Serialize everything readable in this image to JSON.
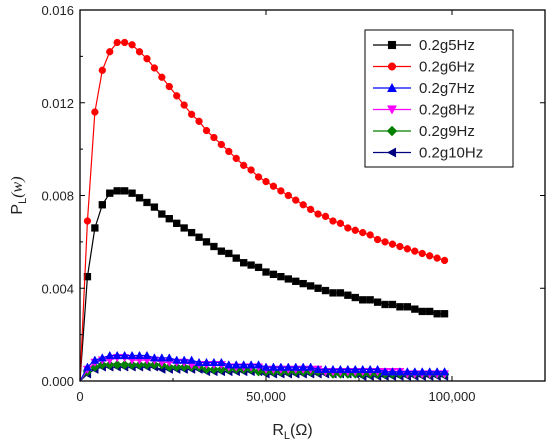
{
  "chart_data": {
    "type": "scatter",
    "title": "",
    "xlabel_main": "R",
    "xlabel_sub": "L",
    "xlabel_unit": "(Ω)",
    "ylabel_main": "P",
    "ylabel_sub": "L",
    "ylabel_unit": "(w)",
    "xlim": [
      0,
      125000
    ],
    "ylim": [
      0,
      0.016
    ],
    "xticks": [
      0,
      50000,
      100000
    ],
    "xtick_labels": [
      "0",
      "50,000",
      "100,000"
    ],
    "yticks": [
      0,
      0.004,
      0.008,
      0.012,
      0.016
    ],
    "ytick_labels": [
      "0.000",
      "0.004",
      "0.008",
      "0.012",
      "0.016"
    ],
    "legend_position": "top-right",
    "x": [
      0,
      2000,
      4000,
      6000,
      8000,
      10000,
      12000,
      14000,
      16000,
      18000,
      20000,
      22000,
      24000,
      26000,
      28000,
      30000,
      32000,
      34000,
      36000,
      38000,
      40000,
      42000,
      44000,
      46000,
      48000,
      50000,
      52000,
      54000,
      56000,
      58000,
      60000,
      62000,
      64000,
      66000,
      68000,
      70000,
      72000,
      74000,
      76000,
      78000,
      80000,
      82000,
      84000,
      86000,
      88000,
      90000,
      92000,
      94000,
      96000,
      98000
    ],
    "series": [
      {
        "name": "0.2g5Hz",
        "color": "#000000",
        "marker": "square",
        "values": [
          0.0,
          0.0045,
          0.0066,
          0.0076,
          0.0081,
          0.0082,
          0.0082,
          0.0081,
          0.0079,
          0.0077,
          0.0075,
          0.0072,
          0.007,
          0.0068,
          0.0066,
          0.0064,
          0.0062,
          0.006,
          0.0058,
          0.0056,
          0.0055,
          0.0053,
          0.0051,
          0.005,
          0.0049,
          0.0047,
          0.0046,
          0.0045,
          0.0044,
          0.0043,
          0.0042,
          0.0041,
          0.004,
          0.0039,
          0.0038,
          0.0038,
          0.0037,
          0.0036,
          0.0035,
          0.0035,
          0.0034,
          0.0033,
          0.0033,
          0.0032,
          0.0032,
          0.0031,
          0.003,
          0.003,
          0.0029,
          0.0029
        ]
      },
      {
        "name": "0.2g6Hz",
        "color": "#ff0000",
        "marker": "circle",
        "values": [
          0.0,
          0.0069,
          0.0116,
          0.0134,
          0.0142,
          0.0146,
          0.0146,
          0.0145,
          0.0142,
          0.0139,
          0.0135,
          0.0131,
          0.0127,
          0.0123,
          0.0119,
          0.0115,
          0.0112,
          0.0108,
          0.0105,
          0.0102,
          0.0099,
          0.0096,
          0.0093,
          0.0091,
          0.0088,
          0.0086,
          0.0084,
          0.0082,
          0.008,
          0.0078,
          0.0076,
          0.0074,
          0.0072,
          0.0071,
          0.0069,
          0.0068,
          0.0066,
          0.0065,
          0.0064,
          0.0063,
          0.0061,
          0.006,
          0.0059,
          0.0058,
          0.0057,
          0.0056,
          0.0055,
          0.0054,
          0.0053,
          0.0052
        ]
      },
      {
        "name": "0.2g7Hz",
        "color": "#0000ff",
        "marker": "triangle-up",
        "values": [
          0.0,
          0.0006,
          0.0009,
          0.001,
          0.0011,
          0.0011,
          0.0011,
          0.0011,
          0.0011,
          0.0011,
          0.001,
          0.001,
          0.001,
          0.0009,
          0.0009,
          0.0009,
          0.0008,
          0.0008,
          0.0008,
          0.0008,
          0.0007,
          0.0007,
          0.0007,
          0.0007,
          0.0007,
          0.0006,
          0.0006,
          0.0006,
          0.0006,
          0.0006,
          0.0006,
          0.0006,
          0.0005,
          0.0005,
          0.0005,
          0.0005,
          0.0005,
          0.0005,
          0.0005,
          0.0005,
          0.0005,
          0.0004,
          0.0004,
          0.0004,
          0.0004,
          0.0004,
          0.0004,
          0.0004,
          0.0004,
          0.0004
        ]
      },
      {
        "name": "0.2g8Hz",
        "color": "#ff00ff",
        "marker": "triangle-down",
        "values": [
          0.0,
          0.0005,
          0.0008,
          0.0009,
          0.0009,
          0.001,
          0.001,
          0.0009,
          0.0009,
          0.0009,
          0.0009,
          0.0008,
          0.0008,
          0.0008,
          0.0008,
          0.0007,
          0.0007,
          0.0007,
          0.0007,
          0.0007,
          0.0006,
          0.0006,
          0.0006,
          0.0006,
          0.0006,
          0.0005,
          0.0005,
          0.0005,
          0.0005,
          0.0005,
          0.0005,
          0.0005,
          0.0005,
          0.0004,
          0.0004,
          0.0004,
          0.0004,
          0.0004,
          0.0004,
          0.0004,
          0.0004,
          0.0004,
          0.0004,
          0.0004,
          0.0003,
          0.0003,
          0.0003,
          0.0003,
          0.0003,
          0.0003
        ]
      },
      {
        "name": "0.2g9Hz",
        "color": "#008000",
        "marker": "diamond",
        "values": [
          0.0,
          0.0004,
          0.0006,
          0.0007,
          0.0007,
          0.0007,
          0.0007,
          0.0007,
          0.0007,
          0.0007,
          0.0007,
          0.0007,
          0.0006,
          0.0006,
          0.0006,
          0.0006,
          0.0006,
          0.0005,
          0.0005,
          0.0005,
          0.0005,
          0.0005,
          0.0005,
          0.0005,
          0.0004,
          0.0004,
          0.0004,
          0.0004,
          0.0004,
          0.0004,
          0.0004,
          0.0004,
          0.0004,
          0.0004,
          0.0003,
          0.0003,
          0.0003,
          0.0003,
          0.0003,
          0.0003,
          0.0003,
          0.0003,
          0.0003,
          0.0003,
          0.0003,
          0.0003,
          0.0003,
          0.0003,
          0.0003,
          0.0003
        ]
      },
      {
        "name": "0.2g10Hz",
        "color": "#000080",
        "marker": "triangle-left",
        "values": [
          0.0,
          0.0003,
          0.0005,
          0.0006,
          0.0006,
          0.0006,
          0.0006,
          0.0006,
          0.0006,
          0.0006,
          0.0006,
          0.0005,
          0.0005,
          0.0005,
          0.0005,
          0.0005,
          0.0005,
          0.0004,
          0.0004,
          0.0004,
          0.0004,
          0.0004,
          0.0004,
          0.0004,
          0.0004,
          0.0003,
          0.0003,
          0.0003,
          0.0003,
          0.0003,
          0.0003,
          0.0003,
          0.0003,
          0.0003,
          0.0003,
          0.0003,
          0.0003,
          0.0003,
          0.0002,
          0.0002,
          0.0002,
          0.0002,
          0.0002,
          0.0002,
          0.0002,
          0.0002,
          0.0002,
          0.0002,
          0.0002,
          0.0002
        ]
      }
    ]
  }
}
